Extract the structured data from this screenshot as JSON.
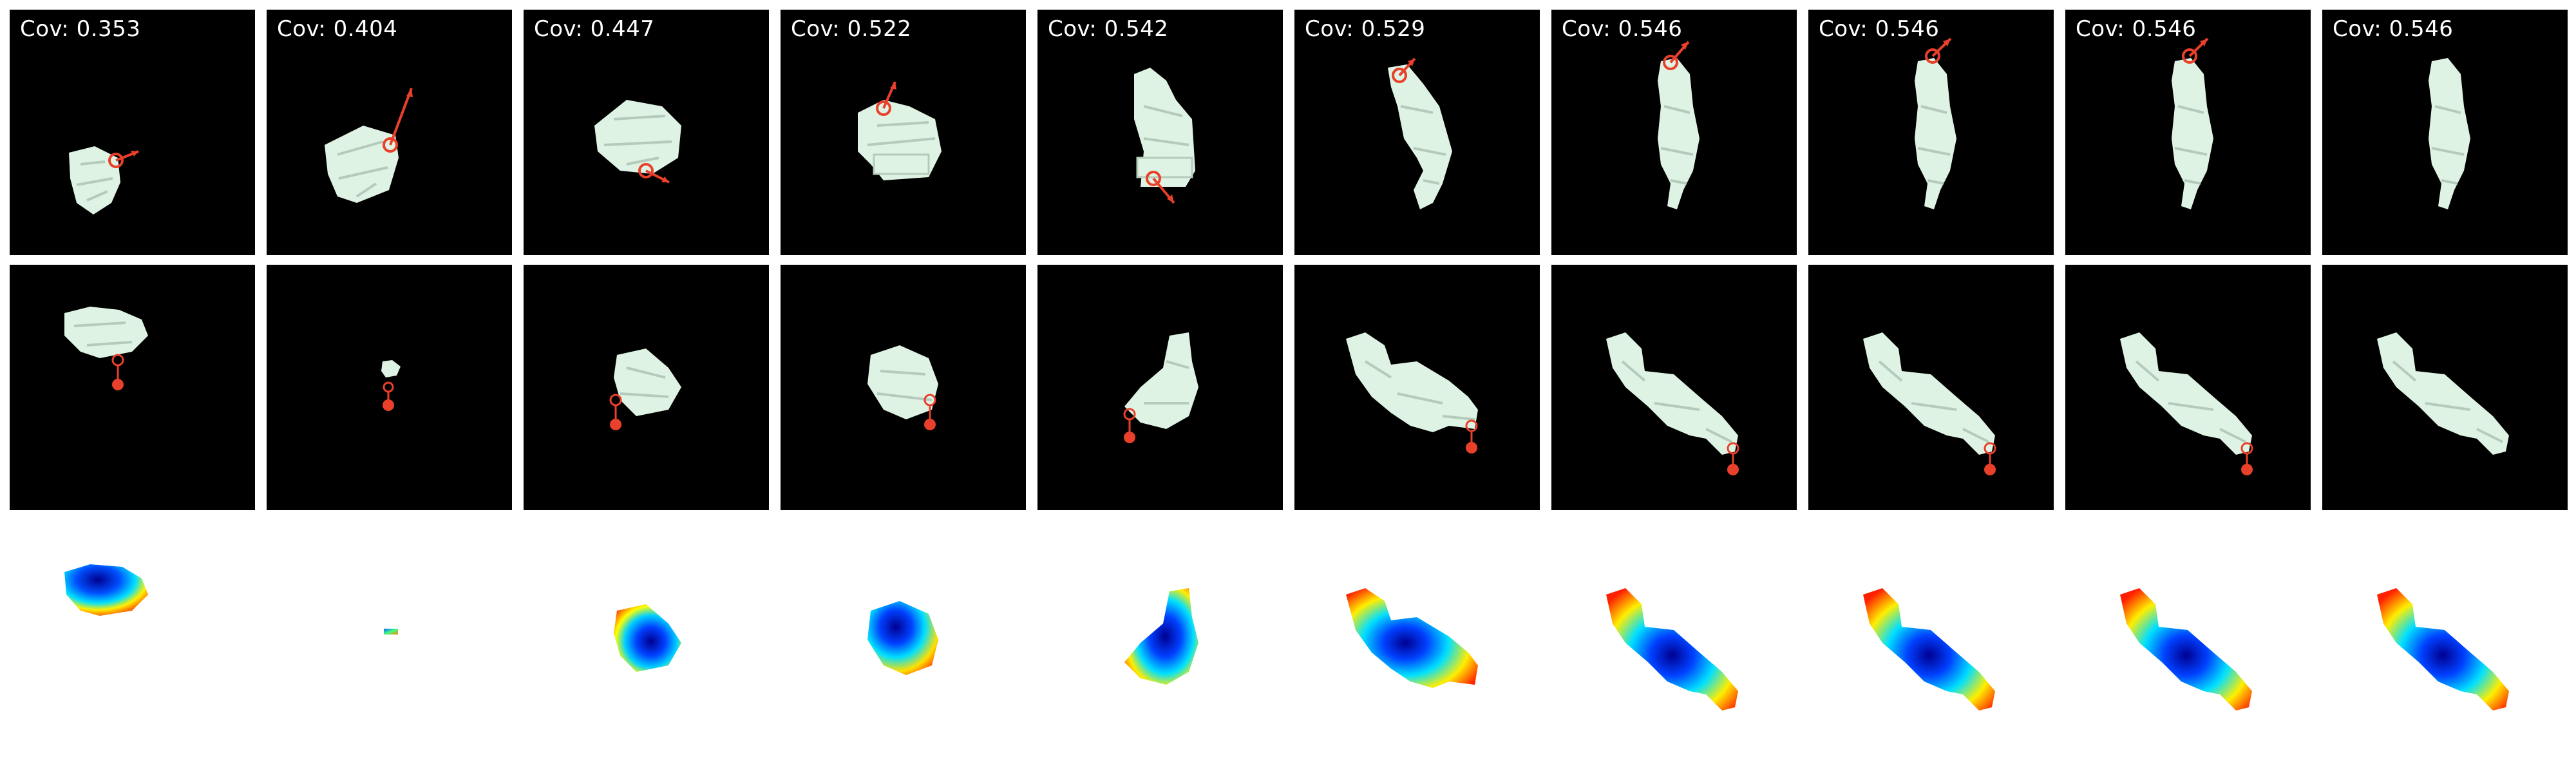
{
  "frames": [
    {
      "cov": "Cov: 0.353"
    },
    {
      "cov": "Cov: 0.404"
    },
    {
      "cov": "Cov: 0.447"
    },
    {
      "cov": "Cov: 0.522"
    },
    {
      "cov": "Cov: 0.542"
    },
    {
      "cov": "Cov: 0.529"
    },
    {
      "cov": "Cov: 0.546"
    },
    {
      "cov": "Cov: 0.546"
    },
    {
      "cov": "Cov: 0.546"
    },
    {
      "cov": "Cov: 0.546"
    }
  ],
  "colors": {
    "cloth": "#dff3e4",
    "cloth_shade": "#b4cbbb",
    "action": "#e8402a",
    "panel_bg": "#000000"
  }
}
